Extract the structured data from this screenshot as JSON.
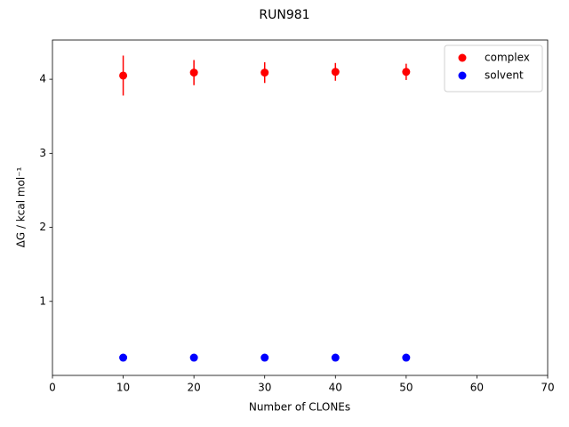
{
  "chart_data": {
    "type": "scatter",
    "title": "RUN981",
    "xlabel": "Number of CLONEs",
    "ylabel": "ΔG / kcal mol⁻¹",
    "x": [
      10,
      20,
      30,
      40,
      50
    ],
    "series": [
      {
        "name": "complex",
        "color": "#ff0000",
        "values": [
          4.05,
          4.09,
          4.09,
          4.1,
          4.1
        ],
        "errors": [
          0.27,
          0.17,
          0.14,
          0.12,
          0.11
        ]
      },
      {
        "name": "solvent",
        "color": "#0000ff",
        "values": [
          0.24,
          0.24,
          0.24,
          0.24,
          0.24
        ]
      }
    ],
    "xlim": [
      0,
      70
    ],
    "xticks": [
      0,
      10,
      20,
      30,
      40,
      50,
      60,
      70
    ],
    "ylim": [
      0,
      4.53
    ],
    "yticks": [
      1,
      2,
      3,
      4
    ],
    "legend": "upper right",
    "grid": false
  }
}
